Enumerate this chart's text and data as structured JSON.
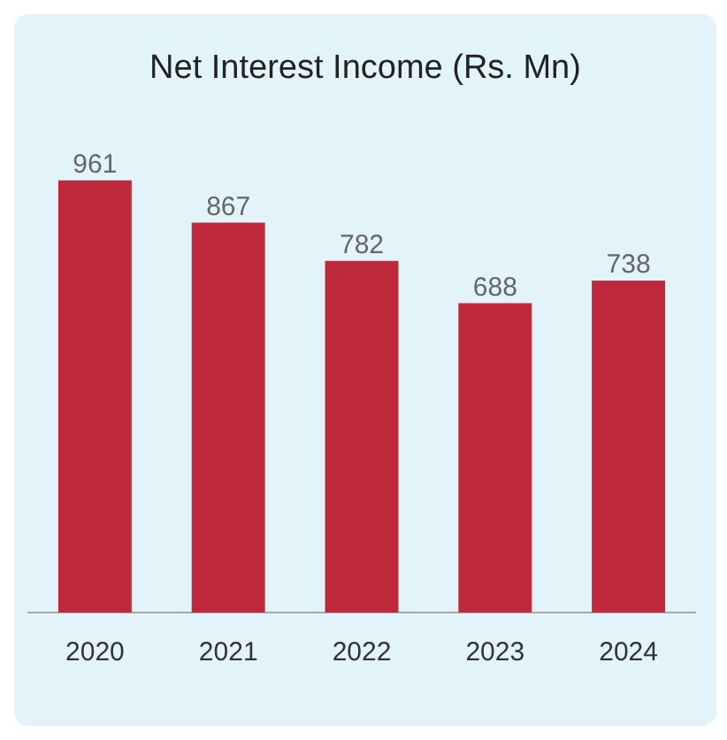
{
  "chart_data": {
    "type": "bar",
    "title": "Net Interest Income (Rs. Mn)",
    "categories": [
      "2020",
      "2021",
      "2022",
      "2023",
      "2024"
    ],
    "values": [
      961,
      867,
      782,
      688,
      738
    ],
    "color": "#be2a3c",
    "data_labels": true,
    "grid": false,
    "legend": false
  }
}
